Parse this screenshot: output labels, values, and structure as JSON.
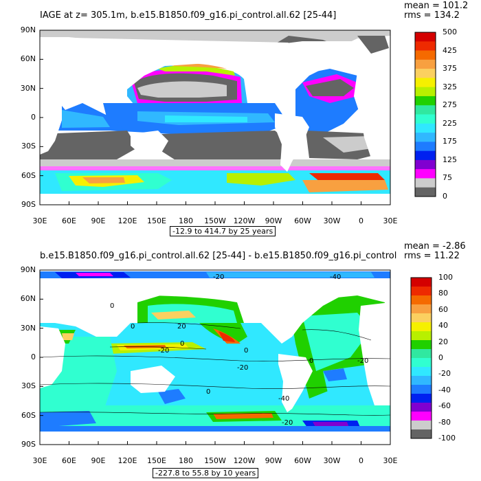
{
  "top_panel": {
    "title": "IAGE at z= 305.1m, b.e15.B1850.f09_g16.pi_control.all.62 [25-44]",
    "mean_label": "mean = 101.2",
    "rms_label": "rms = 134.2",
    "range_label": "-12.9 to 414.7 by 25 years",
    "lat_labels": [
      "90N",
      "60N",
      "30N",
      "0",
      "30S",
      "60S",
      "90S"
    ],
    "lon_labels": [
      "30E",
      "60E",
      "90E",
      "120E",
      "150E",
      "180",
      "150W",
      "120W",
      "90W",
      "60W",
      "30W",
      "0",
      "30E"
    ],
    "colorbar_labels": [
      "500",
      "425",
      "375",
      "325",
      "275",
      "225",
      "175",
      "125",
      "75",
      "0"
    ],
    "colorbar_colors": [
      "#d40000",
      "#ee2a00",
      "#f56a00",
      "#f8a040",
      "#fbd060",
      "#f6f000",
      "#b8f000",
      "#20d000",
      "#30e8a0",
      "#30ffd0",
      "#30e8ff",
      "#30b8ff",
      "#1e7cff",
      "#0020f0",
      "#8000d0",
      "#ff00ff",
      "#cccccc",
      "#646464"
    ]
  },
  "bottom_panel": {
    "title": "b.e15.B1850.f09_g16.pi_control.all.62 [25-44] - b.e15.B1850.f09_g16.pi_control",
    "mean_label": "mean = -2.86",
    "rms_label": "rms = 11.22",
    "range_label": "-227.8 to 55.8 by 10 years",
    "lat_labels": [
      "90N",
      "60N",
      "30N",
      "0",
      "30S",
      "60S",
      "90S"
    ],
    "lon_labels": [
      "30E",
      "60E",
      "90E",
      "120E",
      "150E",
      "180",
      "150W",
      "120W",
      "90W",
      "60W",
      "30W",
      "0",
      "30E"
    ],
    "colorbar_labels": [
      "100",
      "80",
      "60",
      "40",
      "20",
      "0",
      "-20",
      "-40",
      "-60",
      "-80",
      "-100"
    ],
    "colorbar_colors": [
      "#d40000",
      "#ee2a00",
      "#f56a00",
      "#f8a040",
      "#fbd060",
      "#f6f000",
      "#b8f000",
      "#20d000",
      "#30e8a0",
      "#30ffd0",
      "#30e8ff",
      "#30b8ff",
      "#1e7cff",
      "#0020f0",
      "#8000d0",
      "#ff00ff",
      "#cccccc",
      "#646464"
    ],
    "contour_labels": [
      "-20",
      "-40",
      "0",
      "-20",
      "0",
      "0",
      "20",
      "-20",
      "0",
      "0",
      "0",
      "-20",
      "-40",
      "-20"
    ]
  }
}
